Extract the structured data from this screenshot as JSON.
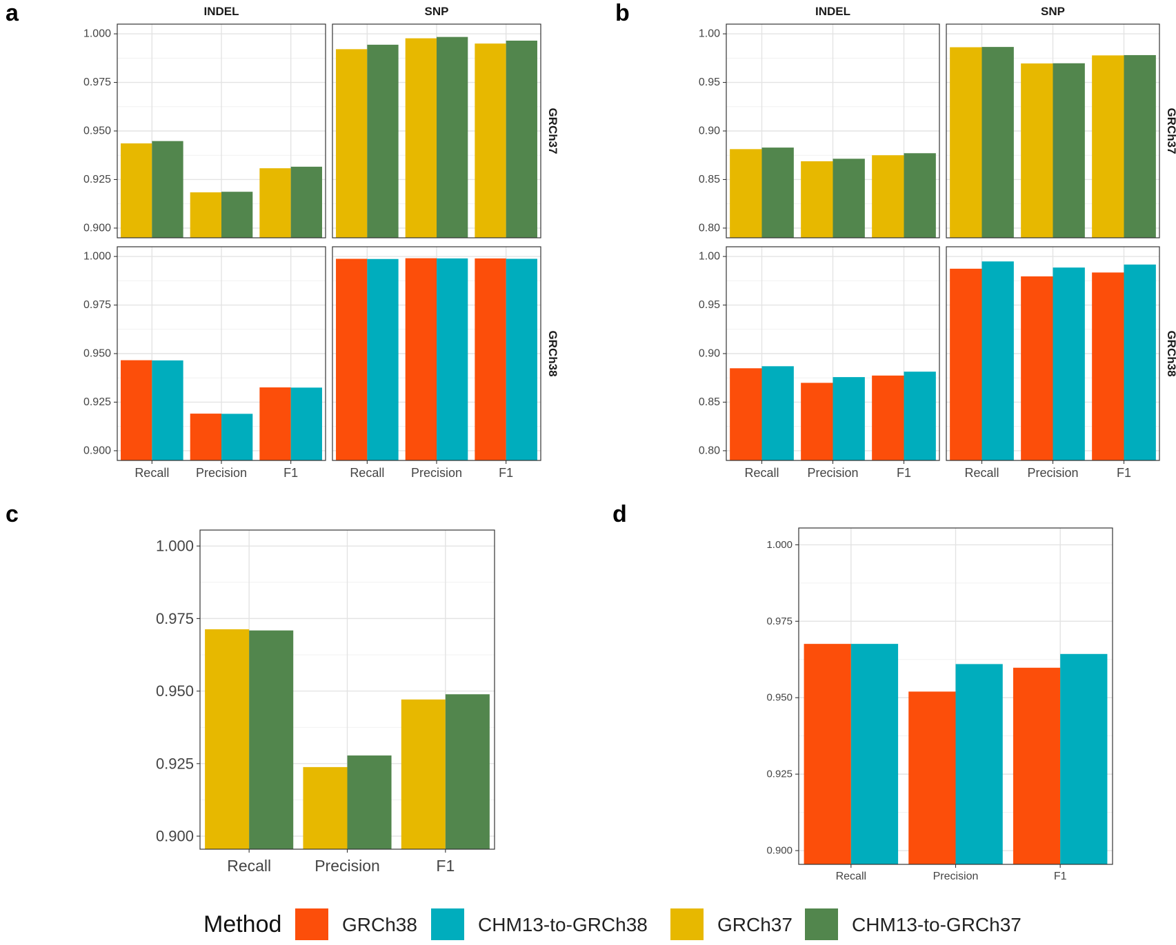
{
  "colors": {
    "GRCh38": "#FC4E0A",
    "CHM13-to-GRCh38": "#00ADBD",
    "GRCh37": "#E7B800",
    "CHM13-to-GRCh37": "#52864D"
  },
  "chart_data": [
    {
      "panel": "a",
      "type": "bar",
      "facet_columns": [
        "INDEL",
        "SNP"
      ],
      "facet_rows": [
        "GRCh37",
        "GRCh38"
      ],
      "categories": [
        "Recall",
        "Precision",
        "F1"
      ],
      "ylim": [
        0.895,
        1.005
      ],
      "yticks": [
        "0.900",
        "0.925",
        "0.950",
        "0.975",
        "1.000"
      ],
      "facets": [
        {
          "col": "INDEL",
          "row": "GRCh37",
          "series": [
            {
              "name": "GRCh37",
              "values": [
                0.9436,
                0.9184,
                0.9308
              ]
            },
            {
              "name": "CHM13-to-GRCh37",
              "values": [
                0.9448,
                0.9187,
                0.9316
              ]
            }
          ]
        },
        {
          "col": "SNP",
          "row": "GRCh37",
          "series": [
            {
              "name": "GRCh37",
              "values": [
                0.9921,
                0.9977,
                0.995
              ]
            },
            {
              "name": "CHM13-to-GRCh37",
              "values": [
                0.9944,
                0.9984,
                0.9965
              ]
            }
          ]
        },
        {
          "col": "INDEL",
          "row": "GRCh38",
          "series": [
            {
              "name": "GRCh38",
              "values": [
                0.9466,
                0.9191,
                0.9326
              ]
            },
            {
              "name": "CHM13-to-GRCh38",
              "values": [
                0.9465,
                0.919,
                0.9325
              ]
            }
          ]
        },
        {
          "col": "SNP",
          "row": "GRCh38",
          "series": [
            {
              "name": "GRCh38",
              "values": [
                0.9988,
                0.9991,
                0.999
              ]
            },
            {
              "name": "CHM13-to-GRCh38",
              "values": [
                0.9987,
                0.999,
                0.9988
              ]
            }
          ]
        }
      ]
    },
    {
      "panel": "b",
      "type": "bar",
      "facet_columns": [
        "INDEL",
        "SNP"
      ],
      "facet_rows": [
        "GRCh37",
        "GRCh38"
      ],
      "categories": [
        "Recall",
        "Precision",
        "F1"
      ],
      "ylim": [
        0.79,
        1.01
      ],
      "yticks": [
        "0.80",
        "0.85",
        "0.90",
        "0.95",
        "1.00"
      ],
      "facets": [
        {
          "col": "INDEL",
          "row": "GRCh37",
          "series": [
            {
              "name": "GRCh37",
              "values": [
                0.8813,
                0.8688,
                0.875
              ]
            },
            {
              "name": "CHM13-to-GRCh37",
              "values": [
                0.8829,
                0.8714,
                0.8771
              ]
            }
          ]
        },
        {
          "col": "SNP",
          "row": "GRCh37",
          "series": [
            {
              "name": "GRCh37",
              "values": [
                0.9862,
                0.9695,
                0.9778
              ]
            },
            {
              "name": "CHM13-to-GRCh37",
              "values": [
                0.9865,
                0.9697,
                0.9781
              ]
            }
          ]
        },
        {
          "col": "INDEL",
          "row": "GRCh38",
          "series": [
            {
              "name": "GRCh38",
              "values": [
                0.8849,
                0.8699,
                0.8774
              ]
            },
            {
              "name": "CHM13-to-GRCh38",
              "values": [
                0.887,
                0.8758,
                0.8814
              ]
            }
          ]
        },
        {
          "col": "SNP",
          "row": "GRCh38",
          "series": [
            {
              "name": "GRCh38",
              "values": [
                0.9874,
                0.9795,
                0.9835
              ]
            },
            {
              "name": "CHM13-to-GRCh38",
              "values": [
                0.9949,
                0.9886,
                0.9917
              ]
            }
          ]
        }
      ]
    },
    {
      "panel": "c",
      "type": "bar",
      "categories": [
        "Recall",
        "Precision",
        "F1"
      ],
      "ylim": [
        0.8955,
        1.0055
      ],
      "yticks": [
        "0.900",
        "0.925",
        "0.950",
        "0.975",
        "1.000"
      ],
      "series": [
        {
          "name": "GRCh37",
          "values": [
            0.9713,
            0.9238,
            0.9471
          ]
        },
        {
          "name": "CHM13-to-GRCh37",
          "values": [
            0.9709,
            0.9278,
            0.9489
          ]
        }
      ]
    },
    {
      "panel": "d",
      "type": "bar",
      "categories": [
        "Recall",
        "Precision",
        "F1"
      ],
      "ylim": [
        0.8955,
        1.0055
      ],
      "yticks": [
        "0.900",
        "0.925",
        "0.950",
        "0.975",
        "1.000"
      ],
      "series": [
        {
          "name": "GRCh38",
          "values": [
            0.9676,
            0.952,
            0.9598
          ]
        },
        {
          "name": "CHM13-to-GRCh38",
          "values": [
            0.9676,
            0.961,
            0.9643
          ]
        }
      ]
    }
  ],
  "legend": {
    "title": "Method",
    "items": [
      "GRCh38",
      "CHM13-to-GRCh38",
      "GRCh37",
      "CHM13-to-GRCh37"
    ]
  }
}
